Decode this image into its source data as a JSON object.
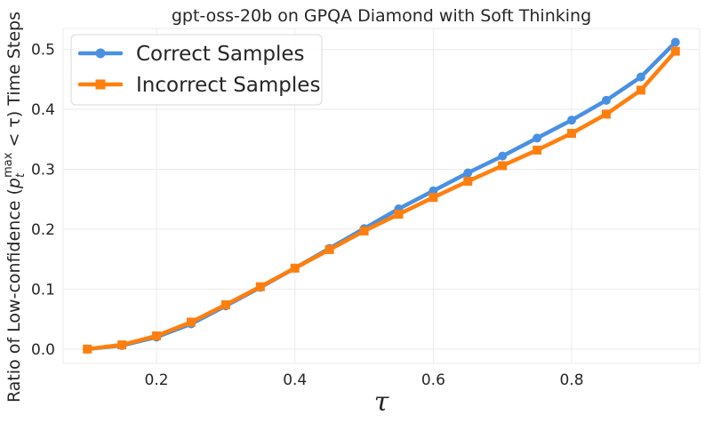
{
  "chart_data": {
    "type": "line",
    "title": "gpt-oss-20b on GPQA Diamond with Soft Thinking",
    "xlabel": "τ",
    "ylabel": "Ratio of Low-confidence (p_t^max < τ) Time Steps",
    "ylabel_parts": {
      "before": "Ratio of Low-confidence (",
      "var": "p",
      "sub": "t",
      "sup": "max",
      "after": " < τ) Time Steps"
    },
    "xlim": [
      0.065,
      0.985
    ],
    "ylim": [
      -0.024,
      0.535
    ],
    "xticks": [
      0.2,
      0.4,
      0.6,
      0.8
    ],
    "xtick_labels": [
      "0.2",
      "0.4",
      "0.6",
      "0.8"
    ],
    "yticks": [
      0.0,
      0.1,
      0.2,
      0.3,
      0.4,
      0.5
    ],
    "ytick_labels": [
      "0.0",
      "0.1",
      "0.2",
      "0.3",
      "0.4",
      "0.5"
    ],
    "grid": true,
    "legend_position": "top-left",
    "x": [
      0.1,
      0.15,
      0.2,
      0.25,
      0.3,
      0.35,
      0.4,
      0.45,
      0.5,
      0.55,
      0.6,
      0.65,
      0.7,
      0.75,
      0.8,
      0.85,
      0.9,
      0.95
    ],
    "series": [
      {
        "name": "Correct Samples",
        "color": "#4a90e2",
        "marker": "circle",
        "values": [
          0.0,
          0.006,
          0.02,
          0.042,
          0.072,
          0.103,
          0.135,
          0.168,
          0.201,
          0.234,
          0.264,
          0.294,
          0.322,
          0.352,
          0.382,
          0.415,
          0.454,
          0.512
        ]
      },
      {
        "name": "Incorrect Samples",
        "color": "#ff7f0e",
        "marker": "square",
        "values": [
          0.0,
          0.007,
          0.022,
          0.045,
          0.074,
          0.104,
          0.135,
          0.166,
          0.197,
          0.225,
          0.253,
          0.28,
          0.306,
          0.332,
          0.36,
          0.392,
          0.432,
          0.497
        ]
      }
    ]
  }
}
